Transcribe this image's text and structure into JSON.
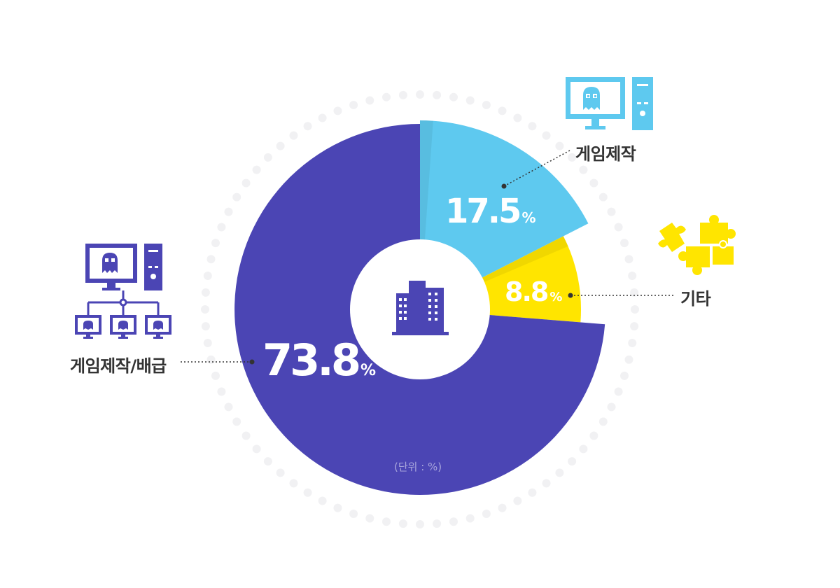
{
  "chart_data": {
    "type": "pie",
    "unit_note": "(단위 : %)",
    "categories": [
      "게임제작",
      "기타",
      "게임제작/배급"
    ],
    "values": [
      17.5,
      8.8,
      73.8
    ],
    "value_labels": [
      "17.5",
      "8.8",
      "73.8"
    ],
    "percent_sign": "%",
    "colors": [
      "#5ec9ef",
      "#ffe500",
      "#4b45b4"
    ],
    "center_icon": "building-icon"
  },
  "icons": {
    "game_production": "computer-ghost-icon",
    "other": "puzzle-icon",
    "production_distribution": "computer-network-icon"
  }
}
